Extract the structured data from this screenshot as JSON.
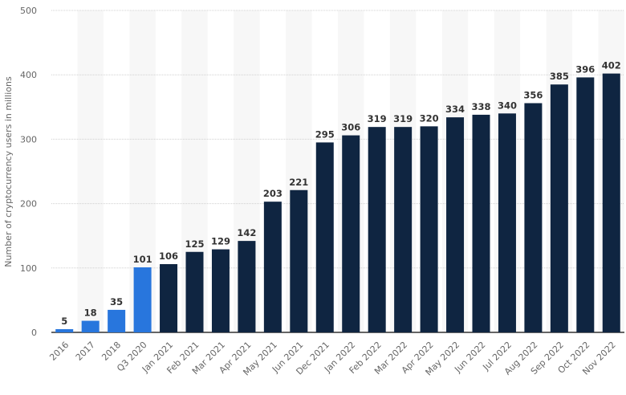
{
  "chart_data": {
    "type": "bar",
    "title": "",
    "xlabel": "",
    "ylabel": "Number of cryptocurrency users in millions",
    "ylim": [
      0,
      500
    ],
    "yticks": [
      0,
      100,
      200,
      300,
      400,
      500
    ],
    "grid": true,
    "categories": [
      "2016",
      "2017",
      "2018",
      "Q3 2020",
      "Jan 2021",
      "Feb 2021",
      "Mar 2021",
      "Apr 2021",
      "May 2021",
      "Jun 2021",
      "Dec 2021",
      "Jan 2022",
      "Feb 2022",
      "Mar 2022",
      "Apr 2022",
      "May 2022",
      "Jun 2022",
      "Jul 2022",
      "Aug 2022",
      "Sep 2022",
      "Oct 2022",
      "Nov 2022"
    ],
    "values": [
      5,
      18,
      35,
      101,
      106,
      125,
      129,
      142,
      203,
      221,
      295,
      306,
      319,
      319,
      320,
      334,
      338,
      340,
      356,
      385,
      396,
      402
    ],
    "bar_colors": [
      "#2876dd",
      "#2876dd",
      "#2876dd",
      "#2876dd",
      "#0f2541",
      "#0f2541",
      "#0f2541",
      "#0f2541",
      "#0f2541",
      "#0f2541",
      "#0f2541",
      "#0f2541",
      "#0f2541",
      "#0f2541",
      "#0f2541",
      "#0f2541",
      "#0f2541",
      "#0f2541",
      "#0f2541",
      "#0f2541",
      "#0f2541",
      "#0f2541"
    ]
  }
}
